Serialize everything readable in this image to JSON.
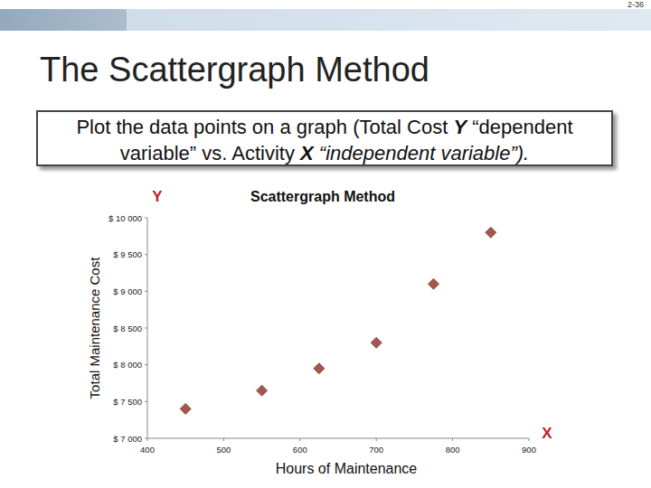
{
  "page_number": "2-36",
  "slide_title": "The Scattergraph Method",
  "box_text": [
    {
      "text": "Plot the data points on a graph (Total Cost ",
      "style": "plain"
    },
    {
      "text": "Y",
      "style": "bold-italic"
    },
    {
      "text": " “dependent variable” vs. Activity ",
      "style": "plain"
    },
    {
      "text": "X",
      "style": "bold-italic"
    },
    {
      "text": " “independent variable”).",
      "style": "italic"
    }
  ],
  "chart_data": {
    "type": "scatter",
    "title": "Scattergraph Method",
    "y_symbol": "Y",
    "x_symbol": "X",
    "x_label": "Hours of Maintenance",
    "y_label": "Total Maintenance Cost",
    "x": [
      450,
      550,
      625,
      700,
      775,
      850
    ],
    "values": [
      7400,
      7650,
      7950,
      8300,
      9100,
      9800
    ],
    "color": "#a5574c",
    "marker": "diamond",
    "xlim": [
      400,
      900
    ],
    "ylim": [
      7000,
      10000
    ],
    "xticks": [
      400,
      500,
      600,
      700,
      800,
      900
    ],
    "yticks": [
      {
        "value": 7000,
        "label": "$ 7 000"
      },
      {
        "value": 7500,
        "label": "$ 7 500"
      },
      {
        "value": 8000,
        "label": "$ 8 000"
      },
      {
        "value": 8500,
        "label": "$ 8 500"
      },
      {
        "value": 9000,
        "label": "$ 9 000"
      },
      {
        "value": 9500,
        "label": "$ 9 500"
      },
      {
        "value": 10000,
        "label": "$ 10 000"
      }
    ]
  }
}
